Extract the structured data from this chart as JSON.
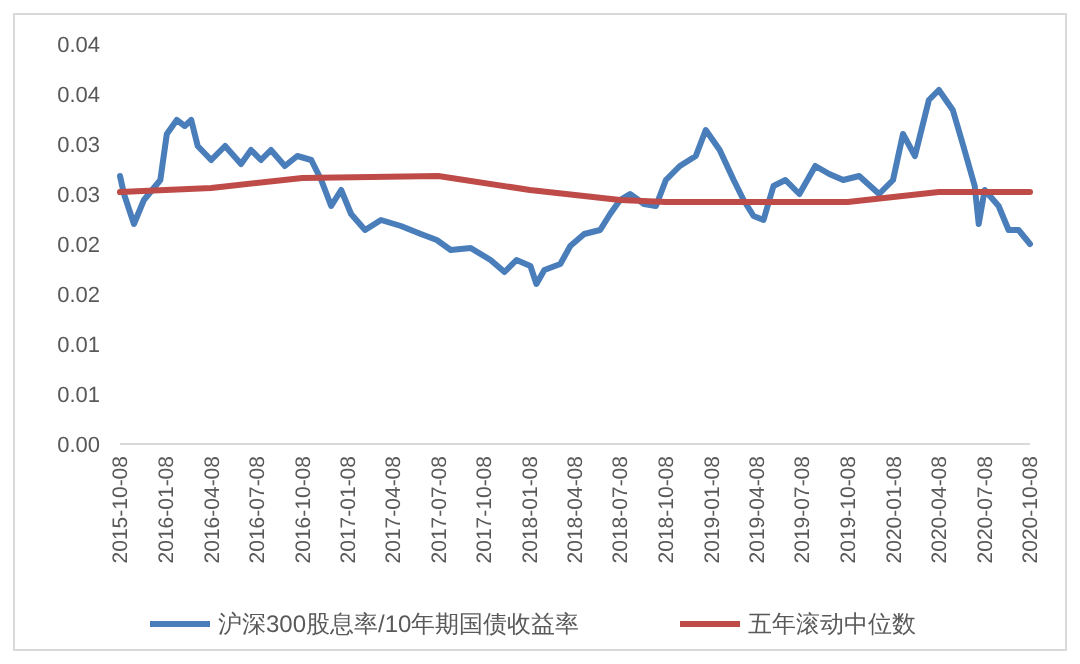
{
  "chart_data": {
    "type": "line",
    "ylim": [
      0,
      0.04
    ],
    "yticks": [
      {
        "value": 0,
        "label": "0.00"
      },
      {
        "value": 0.005,
        "label": "0.01"
      },
      {
        "value": 0.01,
        "label": "0.01"
      },
      {
        "value": 0.015,
        "label": "0.02"
      },
      {
        "value": 0.02,
        "label": "0.02"
      },
      {
        "value": 0.025,
        "label": "0.03"
      },
      {
        "value": 0.03,
        "label": "0.03"
      },
      {
        "value": 0.035,
        "label": "0.04"
      },
      {
        "value": 0.04,
        "label": "0.04"
      }
    ],
    "xlim": [
      "2015-10-08",
      "2020-10-08"
    ],
    "xticks": [
      "2015-10-08",
      "2016-01-08",
      "2016-04-08",
      "2016-07-08",
      "2016-10-08",
      "2017-01-08",
      "2017-04-08",
      "2017-07-08",
      "2017-10-08",
      "2018-01-08",
      "2018-04-08",
      "2018-07-08",
      "2018-10-08",
      "2019-01-08",
      "2019-04-08",
      "2019-07-08",
      "2019-10-08",
      "2020-01-08",
      "2020-04-08",
      "2020-07-08",
      "2020-10-08"
    ],
    "legend": "bottom",
    "marker": "none",
    "line_style": "solid",
    "series": [
      {
        "name": "沪深300股息率/10年期国债收益率",
        "color": "#4a7ebb",
        "x": [
          "2015-10-08",
          "2015-10-16",
          "2015-11-05",
          "2015-11-25",
          "2015-12-28",
          "2016-01-10",
          "2016-01-30",
          "2016-02-15",
          "2016-02-28",
          "2016-03-12",
          "2016-04-08",
          "2016-05-06",
          "2016-06-07",
          "2016-06-27",
          "2016-07-17",
          "2016-08-06",
          "2016-09-03",
          "2016-09-28",
          "2016-10-26",
          "2016-11-15",
          "2016-12-05",
          "2016-12-25",
          "2017-01-14",
          "2017-02-11",
          "2017-03-15",
          "2017-04-24",
          "2017-06-03",
          "2017-07-05",
          "2017-08-02",
          "2017-09-11",
          "2017-10-21",
          "2017-11-18",
          "2017-12-12",
          "2018-01-09",
          "2018-01-21",
          "2018-02-06",
          "2018-03-10",
          "2018-03-30",
          "2018-04-27",
          "2018-05-29",
          "2018-06-18",
          "2018-07-08",
          "2018-07-28",
          "2018-08-25",
          "2018-09-18",
          "2018-10-08",
          "2018-11-05",
          "2018-12-07",
          "2018-12-27",
          "2019-01-24",
          "2019-02-21",
          "2019-03-13",
          "2019-04-02",
          "2019-04-22",
          "2019-05-12",
          "2019-06-05",
          "2019-07-03",
          "2019-08-04",
          "2019-09-01",
          "2019-09-29",
          "2019-10-31",
          "2019-12-10",
          "2020-01-07",
          "2020-01-27",
          "2020-02-20",
          "2020-03-19",
          "2020-04-08",
          "2020-05-06",
          "2020-05-26",
          "2020-06-19",
          "2020-06-27",
          "2020-07-09",
          "2020-08-06",
          "2020-08-26",
          "2020-09-15",
          "2020-10-08"
        ],
        "values": [
          0.0268,
          0.025,
          0.022,
          0.0244,
          0.0264,
          0.031,
          0.0324,
          0.0318,
          0.0324,
          0.0298,
          0.0284,
          0.0298,
          0.028,
          0.0294,
          0.0284,
          0.0294,
          0.0278,
          0.0288,
          0.0284,
          0.0264,
          0.0238,
          0.0254,
          0.023,
          0.0214,
          0.0224,
          0.0218,
          0.021,
          0.0204,
          0.0194,
          0.0196,
          0.0184,
          0.0172,
          0.0184,
          0.0178,
          0.016,
          0.0174,
          0.018,
          0.0198,
          0.021,
          0.0214,
          0.023,
          0.0244,
          0.025,
          0.024,
          0.0238,
          0.0264,
          0.0278,
          0.0288,
          0.0314,
          0.0294,
          0.0264,
          0.0244,
          0.0228,
          0.0224,
          0.0258,
          0.0264,
          0.025,
          0.0278,
          0.027,
          0.0264,
          0.0268,
          0.025,
          0.0264,
          0.031,
          0.0288,
          0.0344,
          0.0354,
          0.0334,
          0.03,
          0.0258,
          0.022,
          0.0254,
          0.0238,
          0.0214,
          0.0214,
          0.02
        ]
      },
      {
        "name": "五年滚动中位数",
        "color": "#be4b48",
        "x": [
          "2015-10-08",
          "2016-04-08",
          "2016-10-08",
          "2017-07-08",
          "2018-01-08",
          "2018-07-08",
          "2018-10-08",
          "2019-10-08",
          "2020-04-08",
          "2020-10-08"
        ],
        "values": [
          0.0252,
          0.0256,
          0.0266,
          0.0268,
          0.0254,
          0.0244,
          0.0242,
          0.0242,
          0.0252,
          0.0252
        ]
      }
    ]
  }
}
